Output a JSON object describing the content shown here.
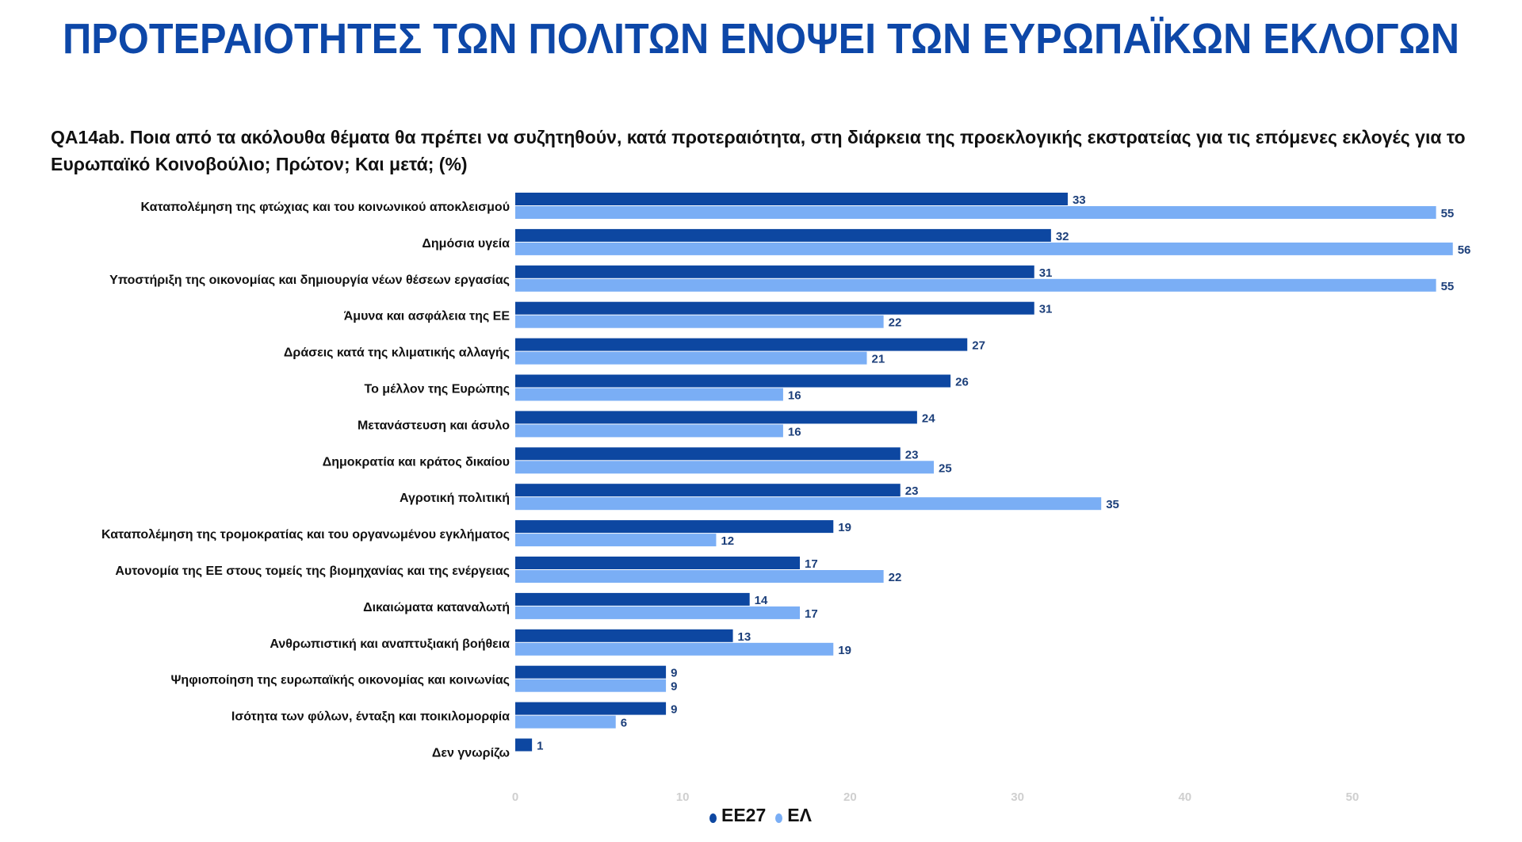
{
  "title": "ΠΡΟΤΕΡΑΙΟΤΗΤΕΣ ΤΩΝ ΠΟΛΙΤΩΝ ΕΝΟΨΕΙ ΤΩΝ ΕΥΡΩΠΑΪΚΩΝ ΕΚΛΟΓΩΝ",
  "question": "QA14ab. Ποια από τα ακόλουθα θέματα θα πρέπει να συζητηθούν, κατά προτεραιότητα, στη διάρκεια της προεκλογικής εκστρατείας για τις επόμενες εκλογές για το Ευρωπαϊκό Κοινοβούλιο; Πρώτον; Και μετά; (%)",
  "chart_data": {
    "type": "bar",
    "orientation": "horizontal",
    "title": "",
    "categories": [
      "Καταπολέμηση της φτώχιας και του κοινωνικού αποκλεισμού",
      "Δημόσια υγεία",
      "Υποστήριξη της οικονομίας και δημιουργία νέων θέσεων εργασίας",
      "Άμυνα και ασφάλεια της ΕΕ",
      "Δράσεις κατά της κλιματικής αλλαγής",
      "Το μέλλον της Ευρώπης",
      "Μετανάστευση και άσυλο",
      "Δημοκρατία και κράτος δικαίου",
      "Αγροτική πολιτική",
      "Καταπολέμηση της τρομοκρατίας και του οργανωμένου εγκλήματος",
      "Αυτονομία της ΕΕ στους τομείς της βιομηχανίας και της ενέργειας",
      "Δικαιώματα καταναλωτή",
      "Ανθρωπιστική και αναπτυξιακή βοήθεια",
      "Ψηφιοποίηση της ευρωπαϊκής οικονομίας και κοινωνίας",
      "Ισότητα των φύλων, ένταξη και ποικιλομορφία",
      "Δεν γνωρίζω"
    ],
    "series": [
      {
        "name": "ΕΕ27",
        "color": "#0d47a1",
        "values": [
          33,
          32,
          31,
          31,
          27,
          26,
          24,
          23,
          23,
          19,
          17,
          14,
          13,
          9,
          9,
          1
        ]
      },
      {
        "name": "ΕΛ",
        "color": "#7aaef5",
        "values": [
          55,
          56,
          55,
          22,
          21,
          16,
          16,
          25,
          35,
          12,
          22,
          17,
          19,
          9,
          6,
          null
        ]
      }
    ],
    "xlim": [
      0,
      57
    ],
    "xticks": [
      0,
      10,
      20,
      30,
      40,
      50
    ],
    "grid": false,
    "legend": "bottom"
  }
}
